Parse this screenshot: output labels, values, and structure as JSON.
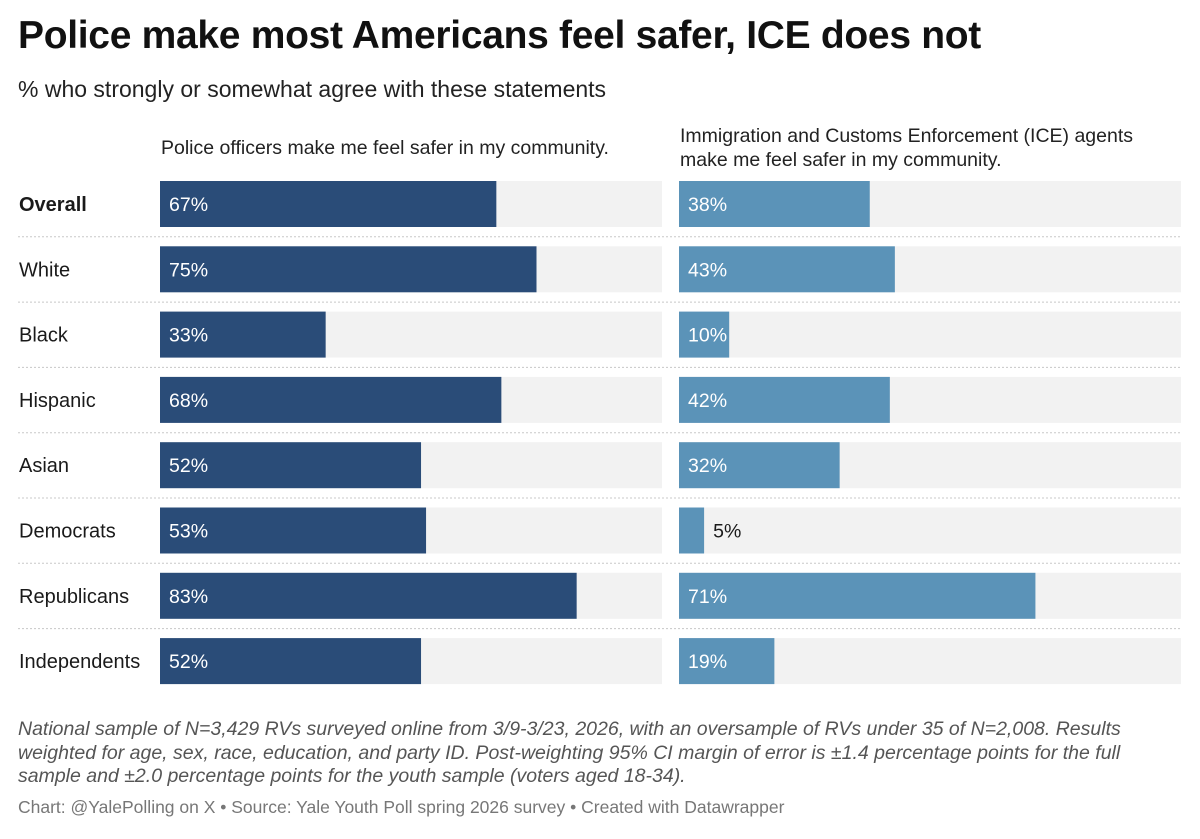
{
  "title": "Police make most Americans feel safer, ICE does not",
  "subtitle": "% who strongly or somewhat agree with these statements",
  "notes": "National sample of N=3,429 RVs surveyed online from 3/9-3/23, 2026, with an oversample of RVs under 35 of N=2,008. Results weighted for age, sex, race, education, and party ID. Post-weighting 95% CI margin of error is ±1.4 percentage points for the full sample and ±2.0 percentage points for the youth sample (voters aged 18-34).",
  "byline": "Chart: @YalePolling on X • Source: Yale Youth Poll spring 2026 survey • Created with Datawrapper",
  "colors": {
    "police": "#2a4c78",
    "ice": "#5b93b8",
    "track": "#f2f2f2",
    "divider": "#c8c8c8"
  },
  "chart_data": {
    "type": "bar",
    "orientation": "horizontal",
    "value_suffix": "%",
    "xlim": [
      0,
      100
    ],
    "categories": [
      "Overall",
      "White",
      "Black",
      "Hispanic",
      "Asian",
      "Democrats",
      "Republicans",
      "Independents"
    ],
    "series": [
      {
        "name": "Police officers make me feel safer in my community.",
        "values": [
          67,
          75,
          33,
          68,
          52,
          53,
          83,
          52
        ]
      },
      {
        "name": "Immigration and Customs Enforcement (ICE) agents make me feel safer in my community.",
        "values": [
          38,
          43,
          10,
          42,
          32,
          5,
          71,
          19
        ]
      }
    ]
  }
}
